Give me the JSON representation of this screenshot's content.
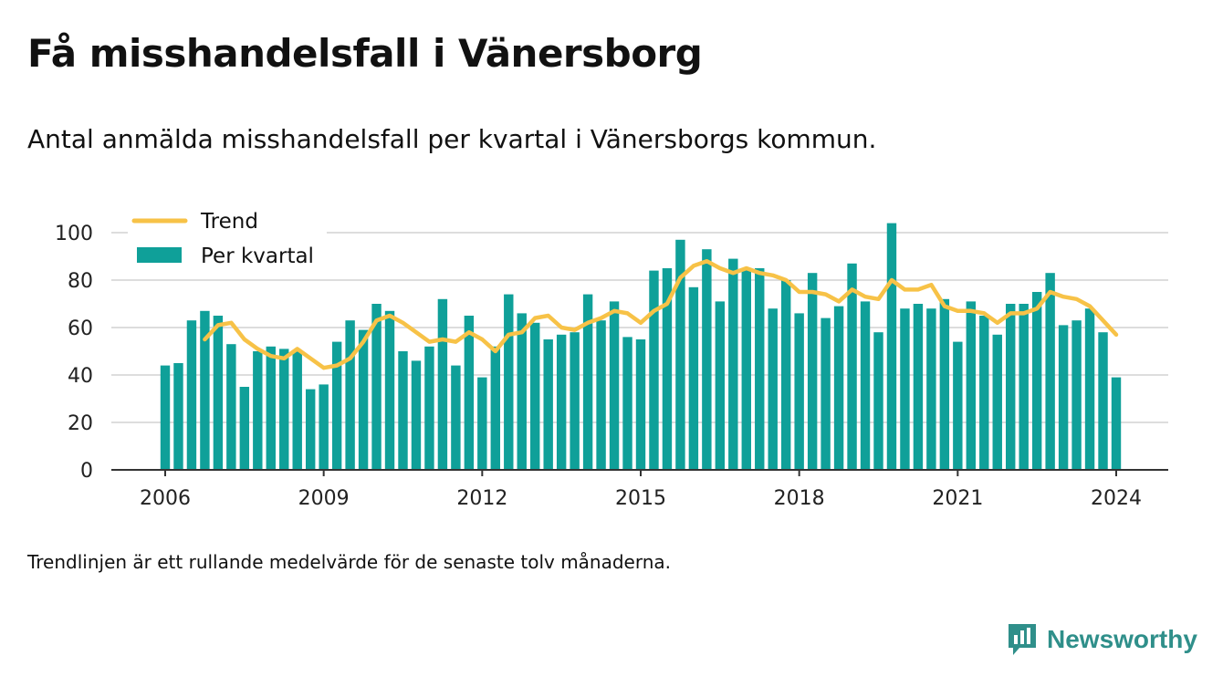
{
  "title": "Få misshandelsfall i Vänersborg",
  "subtitle": "Antal anmälda misshandelsfall per kvartal i Vänersborgs kommun.",
  "footnote": "Trendlinjen är ett rullande medelvärde för de senaste tolv månaderna.",
  "brand": {
    "name": "Newsworthy",
    "icon": "newsworthy-logo-icon"
  },
  "colors": {
    "bar": "#0fa099",
    "trend": "#f7c247",
    "grid": "#dddddd",
    "axis": "#333333",
    "brand": "#2f8f8a"
  },
  "chart_data": {
    "type": "bar",
    "x_start": 2006,
    "x_step": 0.25,
    "xticks": [
      2006,
      2009,
      2012,
      2015,
      2018,
      2021,
      2024
    ],
    "yticks": [
      0,
      20,
      40,
      60,
      80,
      100
    ],
    "xlim": [
      2005,
      2025
    ],
    "ylim": [
      0,
      100
    ],
    "grid": true,
    "legend_position": "top-left",
    "series": [
      {
        "name": "Per kvartal",
        "type": "bar",
        "values": [
          44,
          45,
          63,
          67,
          65,
          53,
          35,
          50,
          52,
          51,
          50,
          34,
          36,
          54,
          63,
          59,
          70,
          67,
          50,
          46,
          52,
          72,
          44,
          65,
          39,
          52,
          74,
          66,
          62,
          55,
          57,
          58,
          74,
          63,
          71,
          56,
          55,
          84,
          85,
          97,
          77,
          93,
          71,
          89,
          85,
          85,
          68,
          80,
          66,
          83,
          64,
          69,
          87,
          71,
          58,
          104,
          68,
          70,
          68,
          72,
          54,
          71,
          65,
          57,
          70,
          70,
          75,
          83,
          61,
          63,
          68,
          58,
          39
        ]
      },
      {
        "name": "Trend",
        "type": "line",
        "start_index": 3,
        "values": [
          55,
          61,
          62,
          55,
          51,
          48,
          47,
          51,
          47,
          43,
          44,
          47,
          54,
          63,
          65,
          62,
          58,
          54,
          55,
          54,
          58,
          55,
          50,
          57,
          58,
          64,
          65,
          60,
          59,
          62,
          64,
          67,
          66,
          62,
          67,
          70,
          81,
          86,
          88,
          85,
          83,
          85,
          83,
          82,
          80,
          75,
          75,
          74,
          71,
          76,
          73,
          72,
          80,
          76,
          76,
          78,
          69,
          67,
          67,
          66,
          62,
          66,
          66,
          68,
          75,
          73,
          72,
          69,
          63,
          57
        ]
      }
    ]
  }
}
